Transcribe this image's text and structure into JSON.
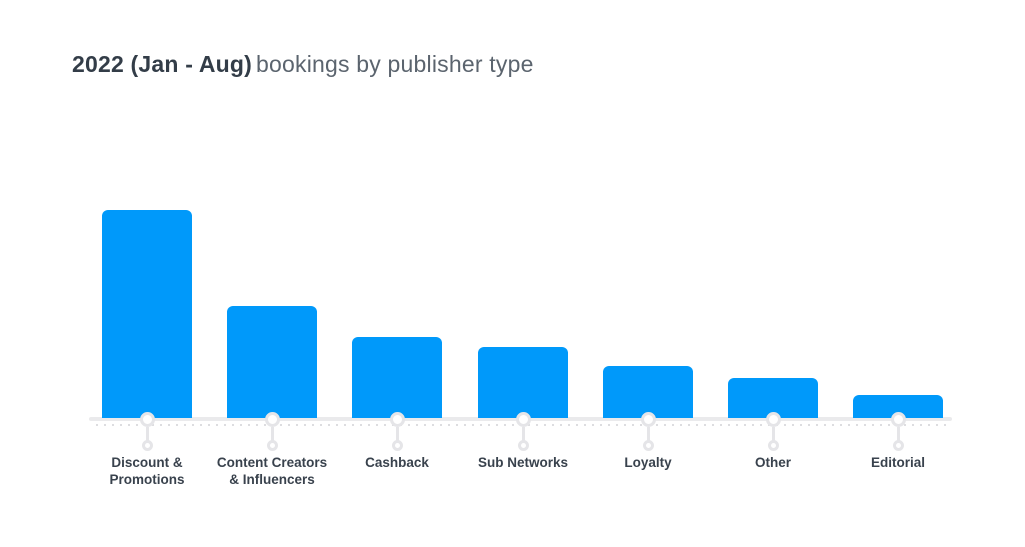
{
  "title": {
    "bold": "2022 (Jan - Aug)",
    "rest": "bookings by publisher type"
  },
  "colors": {
    "bar": "#0099fa",
    "axis_line": "#eaeaec",
    "axis_dotted": "#dddde0",
    "marker_stroke": "#e5e5e8",
    "title_bold": "#333d48",
    "title_rest": "#5b646e",
    "category_label": "#39424d",
    "background": "#ffffff"
  },
  "chart_data": {
    "type": "bar",
    "title": "2022 (Jan - Aug) bookings by publisher type",
    "categories": [
      "Discount & Promotions",
      "Content Creators & Influencers",
      "Cashback",
      "Sub Networks",
      "Loyalty",
      "Other",
      "Editorial"
    ],
    "category_lines": [
      [
        "Discount &",
        "Promotions"
      ],
      [
        "Content Creators",
        "& Influencers"
      ],
      [
        "Cashback"
      ],
      [
        "Sub Networks"
      ],
      [
        "Loyalty"
      ],
      [
        "Other"
      ],
      [
        "Editorial"
      ]
    ],
    "values": [
      100,
      54,
      39,
      34,
      25,
      19,
      11
    ],
    "value_units": "relative height, % of tallest bar (no value axis shown in chart)",
    "xlabel": "",
    "ylabel": "",
    "ylim": [
      0,
      100
    ],
    "grid": false,
    "legend_position": "none",
    "value_axis_visible": false
  }
}
